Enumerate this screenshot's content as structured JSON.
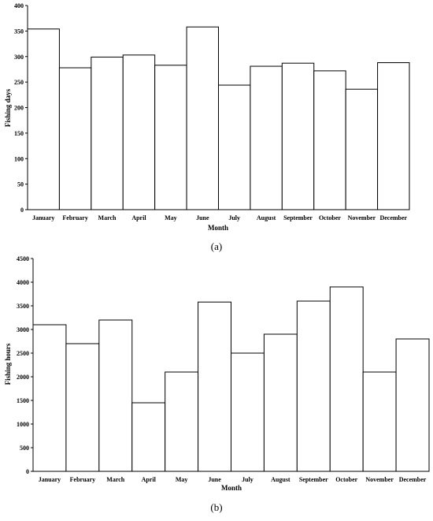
{
  "chart_data": [
    {
      "type": "bar",
      "caption": "(a)",
      "categories": [
        "January",
        "February",
        "March",
        "April",
        "May",
        "June",
        "July",
        "August",
        "September",
        "October",
        "November",
        "December"
      ],
      "values": [
        354,
        278,
        299,
        303,
        283,
        358,
        244,
        281,
        287,
        272,
        236,
        288
      ],
      "xlabel": "Month",
      "ylabel": "Fishing days",
      "ylim": [
        0,
        400
      ],
      "yticks": [
        0,
        50,
        100,
        150,
        200,
        250,
        300,
        350,
        400
      ],
      "bar_fill": "#ffffff",
      "bar_stroke": "#000000",
      "grid": false,
      "legend": "none"
    },
    {
      "type": "bar",
      "caption": "(b)",
      "categories": [
        "January",
        "February",
        "March",
        "April",
        "May",
        "June",
        "July",
        "August",
        "September",
        "October",
        "November",
        "December"
      ],
      "values": [
        3100,
        2700,
        3200,
        1450,
        2100,
        3580,
        2500,
        2900,
        3600,
        3900,
        2100,
        2800
      ],
      "xlabel": "Month",
      "ylabel": "Fishing hours",
      "ylim": [
        0,
        4500
      ],
      "yticks": [
        0,
        500,
        1000,
        1500,
        2000,
        2500,
        3000,
        3500,
        4000,
        4500
      ],
      "bar_fill": "#ffffff",
      "bar_stroke": "#000000",
      "grid": false,
      "legend": "none"
    }
  ]
}
